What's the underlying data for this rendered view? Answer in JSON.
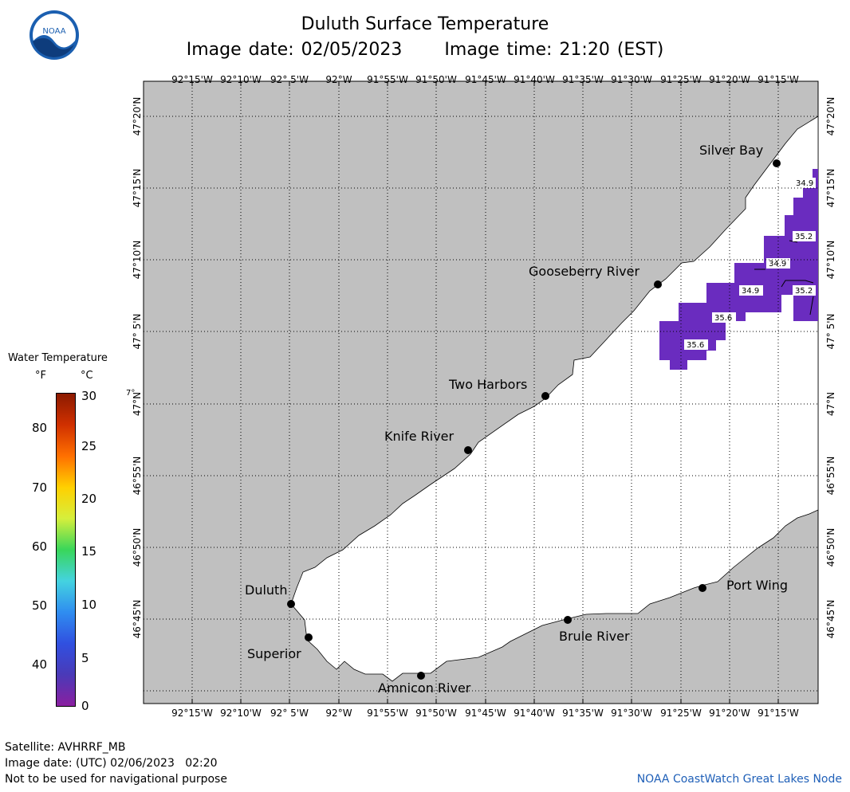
{
  "header": {
    "title": "Duluth Surface Temperature",
    "image_date": "Image date: 02/05/2023",
    "image_time": "Image time: 21:20 (EST)"
  },
  "logo": {
    "icon": "noaa-logo-icon",
    "text": "NOAA"
  },
  "map": {
    "lon_labels": [
      "92°15'W",
      "92°10'W",
      "92° 5'W",
      "92°W",
      "91°55'W",
      "91°50'W",
      "91°45'W",
      "91°40'W",
      "91°35'W",
      "91°30'W",
      "91°25'W",
      "91°20'W",
      "91°15'W"
    ],
    "lat_labels_left": [
      "47°20'N",
      "47°15'N",
      "47°10'N",
      "47° 5'N",
      "47°N",
      "46°55'N",
      "46°50'N",
      "46°45'N"
    ],
    "lat_labels_right": [
      "47°20'N",
      "47°15'N",
      "47°10'N",
      "47° 5'N",
      "47°N",
      "46°55'N",
      "46°50'N",
      "46°45'N"
    ],
    "places": [
      "Silver Bay",
      "Gooseberry River",
      "Two Harbors",
      "Knife River",
      "Duluth",
      "Superior",
      "Amnicon River",
      "Brule River",
      "Port Wing"
    ],
    "contour_labels": [
      "34.9",
      "35.2",
      "34.9",
      "34.9",
      "35.2",
      "35.6",
      "35.6"
    ],
    "colors": {
      "land": "#c0c0c0",
      "no_data_water": "#ffffff",
      "cold_water": "#6a2cbf"
    }
  },
  "legend": {
    "title": "Water Temperature",
    "unit_f": "°F",
    "unit_c": "°C",
    "f_ticks": [
      "80",
      "70",
      "60",
      "50",
      "40"
    ],
    "c_ticks": [
      "30",
      "25",
      "20",
      "15",
      "10",
      "5",
      "0"
    ],
    "stray_label": "7°"
  },
  "footer": {
    "satellite": "Satellite: AVHRRF_MB",
    "utc_date": "Image date: (UTC) 02/06/2023   02:20",
    "warning": "Not to be used for navigational purpose",
    "credit": "NOAA CoastWatch Great Lakes Node"
  }
}
